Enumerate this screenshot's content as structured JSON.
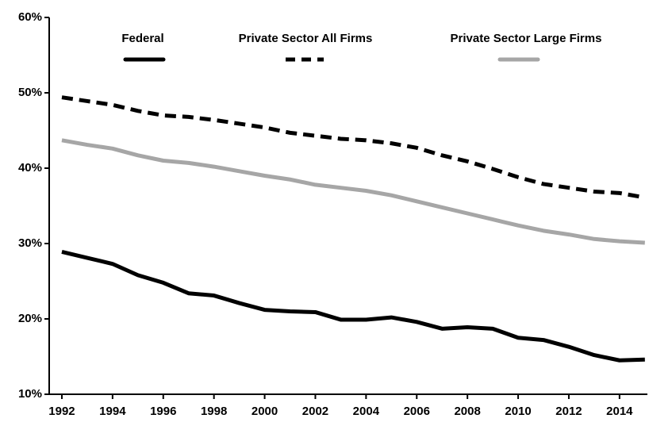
{
  "chart_data": {
    "type": "line",
    "x": [
      1992,
      1993,
      1994,
      1995,
      1996,
      1997,
      1998,
      1999,
      2000,
      2001,
      2002,
      2003,
      2004,
      2005,
      2006,
      2007,
      2008,
      2009,
      2010,
      2011,
      2012,
      2013,
      2014,
      2015
    ],
    "series": [
      {
        "name": "Federal",
        "color": "#000000",
        "dash": false,
        "values": [
          28.9,
          28.1,
          27.3,
          25.8,
          24.8,
          23.4,
          23.1,
          22.1,
          21.2,
          21.0,
          20.9,
          19.9,
          19.9,
          20.2,
          19.6,
          18.7,
          18.9,
          18.7,
          17.5,
          17.2,
          16.3,
          15.2,
          14.5,
          14.6
        ]
      },
      {
        "name": "Private Sector All Firms",
        "color": "#000000",
        "dash": true,
        "values": [
          49.4,
          48.9,
          48.4,
          47.6,
          47.0,
          46.8,
          46.4,
          45.9,
          45.4,
          44.7,
          44.3,
          43.9,
          43.7,
          43.3,
          42.7,
          41.7,
          40.9,
          39.9,
          38.8,
          37.9,
          37.4,
          36.9,
          36.7,
          36.1
        ]
      },
      {
        "name": "Private Sector Large Firms",
        "color": "#a6a6a6",
        "dash": false,
        "values": [
          43.7,
          43.1,
          42.6,
          41.7,
          41.0,
          40.7,
          40.2,
          39.6,
          39.0,
          38.5,
          37.8,
          37.4,
          37.0,
          36.4,
          35.6,
          34.8,
          34.0,
          33.2,
          32.4,
          31.7,
          31.2,
          30.6,
          30.3,
          30.1
        ]
      }
    ],
    "xlim": [
      1991.5,
      2015.1
    ],
    "xticks": [
      1992,
      1994,
      1996,
      1998,
      2000,
      2002,
      2004,
      2006,
      2008,
      2010,
      2012,
      2014
    ],
    "ylim": [
      10,
      60
    ],
    "yticks": [
      {
        "value": 10,
        "label": "10%"
      },
      {
        "value": 20,
        "label": "20%"
      },
      {
        "value": 30,
        "label": "30%"
      },
      {
        "value": 40,
        "label": "40%"
      },
      {
        "value": 50,
        "label": "50%"
      },
      {
        "value": 60,
        "label": "60%"
      }
    ],
    "grid": false,
    "legend": "top"
  }
}
